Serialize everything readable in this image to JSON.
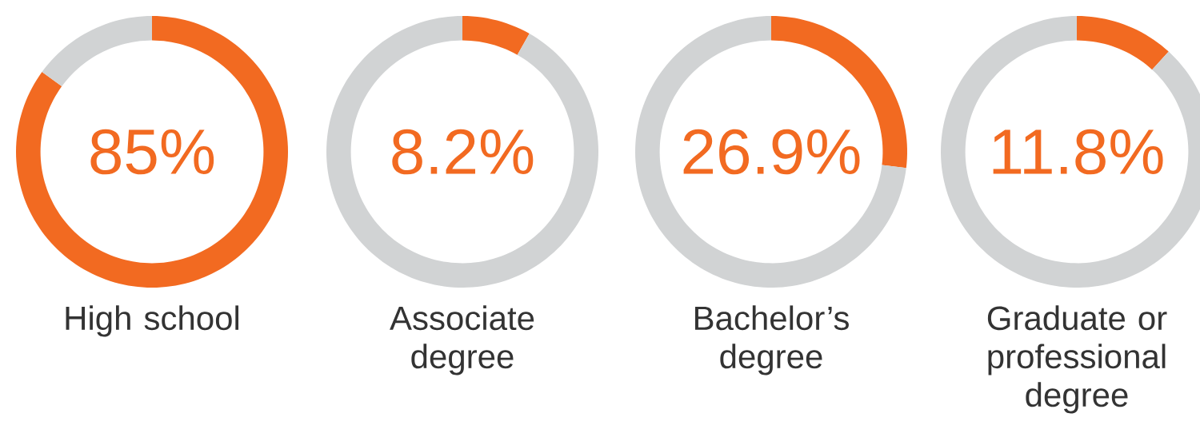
{
  "chart_data": [
    {
      "type": "donut",
      "title": "High school",
      "categories": [
        null,
        null
      ],
      "values": [
        85,
        15
      ],
      "colors": [
        "#f26a21",
        "#d1d3d4"
      ],
      "annotations": [
        "85%"
      ]
    },
    {
      "type": "donut",
      "title": "Associate degree",
      "categories": [
        null,
        null
      ],
      "values": [
        8.2,
        91.8
      ],
      "colors": [
        "#f26a21",
        "#d1d3d4"
      ],
      "annotations": [
        "8.2%"
      ]
    },
    {
      "type": "donut",
      "title": "Bachelor’s degree",
      "categories": [
        null,
        null
      ],
      "values": [
        26.9,
        73.1
      ],
      "colors": [
        "#f26a21",
        "#d1d3d4"
      ],
      "annotations": [
        "26.9%"
      ]
    },
    {
      "type": "donut",
      "title": "Graduate or professional degree",
      "categories": [
        null,
        null
      ],
      "values": [
        11.8,
        88.2
      ],
      "colors": [
        "#f26a21",
        "#d1d3d4"
      ],
      "annotations": [
        "11.8%"
      ]
    }
  ]
}
